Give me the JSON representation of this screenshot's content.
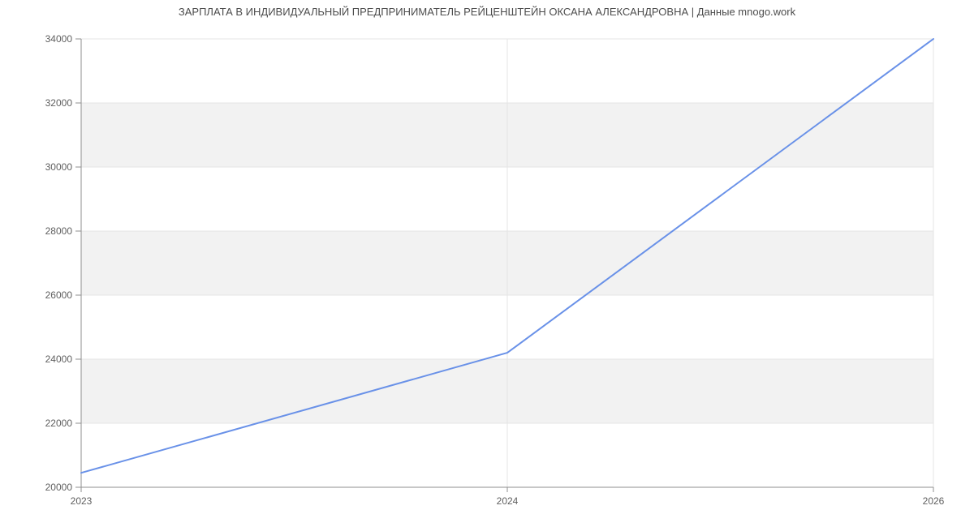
{
  "page": {
    "title": "ЗАРПЛАТА В ИНДИВИДУАЛЬНЫЙ ПРЕДПРИНИМАТЕЛЬ РЕЙЦЕНШТЕЙН ОКСАНА АЛЕКСАНДРОВНА | Данные mnogo.work"
  },
  "colors": {
    "background": "#ffffff",
    "title_text": "#4c4c4c",
    "tick_text": "#5f5f5f",
    "axis": "#8f8f8f",
    "gridline": "#e4e4e4",
    "band": "#f2f2f2",
    "line": "#6991e8"
  },
  "chart_data": {
    "type": "line",
    "title": "ЗАРПЛАТА В ИНДИВИДУАЛЬНЫЙ ПРЕДПРИНИМАТЕЛЬ РЕЙЦЕНШТЕЙН ОКСАНА АЛЕКСАНДРОВНА | Данные mnogo.work",
    "x": [
      "2023",
      "2024",
      "2026"
    ],
    "values": [
      20450,
      24200,
      34000
    ],
    "xlabel": "",
    "ylabel": "",
    "ylim": [
      20000,
      34000
    ],
    "ytick_step": 2000,
    "yticks": [
      20000,
      22000,
      24000,
      26000,
      28000,
      30000,
      32000,
      34000
    ],
    "gray_bands": [
      [
        22000,
        24000
      ],
      [
        26000,
        28000
      ],
      [
        30000,
        32000
      ]
    ],
    "vertical_gridlines_at": [
      "2024",
      "2026"
    ],
    "grid": "horizontal lines at every ytick; alternating gray bands; vertical line at 2024 and right edge",
    "legend": "none",
    "markers": "none"
  }
}
